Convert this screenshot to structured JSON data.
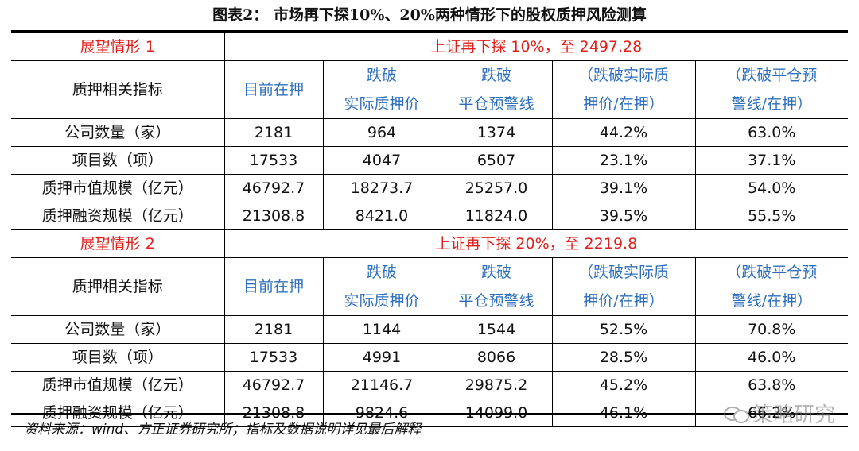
{
  "title": "图表2：  市场再下探10%、20%两种情形下的股权质押风险测算",
  "scenarios": [
    {
      "label": "展望情形 1",
      "title": "上证再下探 10%，至 2497.28",
      "headers": [
        "质押相关指标",
        "目前在押",
        "跌破",
        "实际质押价",
        "跌破",
        "平仓预警线",
        "（跌破实际质",
        "押价/在押）",
        "（跌破平仓预",
        "警线/在押）"
      ],
      "rows": [
        [
          "公司数量（家）",
          "2181",
          "964",
          "1374",
          "44.2%",
          "63.0%"
        ],
        [
          "项目数（项）",
          "17533",
          "4047",
          "6507",
          "23.1%",
          "37.1%"
        ],
        [
          "质押市值规模（亿元）",
          "46792.7",
          "18273.7",
          "25257.0",
          "39.1%",
          "54.0%"
        ],
        [
          "质押融资规模（亿元）",
          "21308.8",
          "8421.0",
          "11824.0",
          "39.5%",
          "55.5%"
        ]
      ]
    },
    {
      "label": "展望情形 2",
      "title": "上证再下探 20%，至 2219.8",
      "headers": [
        "质押相关指标",
        "目前在押",
        "跌破",
        "实际质押价",
        "跌破",
        "平仓预警线",
        "（跌破实际质",
        "押价/在押）",
        "（跌破平仓预",
        "警线/在押）"
      ],
      "rows": [
        [
          "公司数量（家）",
          "2181",
          "1144",
          "1544",
          "52.5%",
          "70.8%"
        ],
        [
          "项目数（项）",
          "17533",
          "4991",
          "8066",
          "28.5%",
          "46.0%"
        ],
        [
          "质押市值规模（亿元）",
          "46792.7",
          "21146.7",
          "29875.2",
          "45.2%",
          "63.8%"
        ],
        [
          "质押融资规模（亿元）",
          "21308.8",
          "9824.6",
          "14099.0",
          "46.1%",
          "66.2%"
        ]
      ]
    }
  ],
  "source": "资料来源：wind、方正证券研究所；指标及数据说明详见最后解释",
  "watermark": "策略研究",
  "colors": {
    "red": "#e0201c",
    "blue": "#2e6fbd"
  }
}
